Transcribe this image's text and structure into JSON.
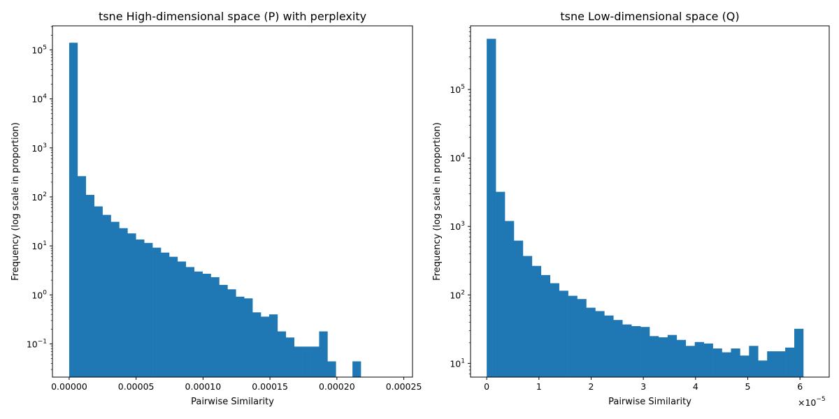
{
  "colors": {
    "bar": "#1f77b4",
    "axis": "#000000",
    "background": "#ffffff"
  },
  "chart_data": [
    {
      "type": "bar",
      "title": "tsne High-dimensional space (P) with perplexity",
      "xlabel": "Pairwise Similarity",
      "ylabel": "Frequency (log scale in proportion)",
      "y_scale": "log",
      "xlim": [
        -1.25e-05,
        0.0002565
      ],
      "ylim": [
        0.021,
        310000
      ],
      "x_ticks": [
        0,
        5e-05,
        0.0001,
        0.00015,
        0.0002,
        0.00025
      ],
      "x_tick_labels": [
        "0.00000",
        "0.00005",
        "0.00010",
        "0.00015",
        "0.00020",
        "0.00025"
      ],
      "y_ticks": [
        0.1,
        1,
        10,
        100,
        1000,
        10000,
        100000
      ],
      "y_tick_labels": [
        {
          "base": "10",
          "exp": "−1"
        },
        {
          "base": "10",
          "exp": "0"
        },
        {
          "base": "10",
          "exp": "1"
        },
        {
          "base": "10",
          "exp": "2"
        },
        {
          "base": "10",
          "exp": "3"
        },
        {
          "base": "10",
          "exp": "4"
        },
        {
          "base": "10",
          "exp": "5"
        }
      ],
      "bin_start": 0,
      "bin_width": 6.225e-06,
      "values": [
        140000,
        265,
        110,
        64,
        43,
        31,
        23,
        18,
        13.5,
        11.5,
        9.2,
        7.3,
        6.0,
        4.8,
        3.7,
        3.0,
        2.7,
        2.3,
        1.6,
        1.3,
        0.92,
        0.85,
        0.44,
        0.36,
        0.4,
        0.18,
        0.135,
        0.088,
        0.088,
        0.088,
        0.18,
        0.044,
        0,
        0,
        0.044,
        0,
        0,
        0,
        0,
        0
      ]
    },
    {
      "type": "bar",
      "title": "tsne Low-dimensional space (Q)",
      "xlabel": "Pairwise Similarity",
      "ylabel": "Frequency (log scale in proportion)",
      "y_scale": "log",
      "x_offset_label": {
        "base": "×10",
        "exp": "−5"
      },
      "xlim": [
        -0.31,
        6.56
      ],
      "ylim": [
        6.3,
        850000
      ],
      "x_ticks": [
        0,
        1,
        2,
        3,
        4,
        5,
        6
      ],
      "x_tick_labels": [
        "0",
        "1",
        "2",
        "3",
        "4",
        "5",
        "6"
      ],
      "y_ticks": [
        10,
        100,
        1000,
        10000,
        100000
      ],
      "y_tick_labels": [
        {
          "base": "10",
          "exp": "1"
        },
        {
          "base": "10",
          "exp": "2"
        },
        {
          "base": "10",
          "exp": "3"
        },
        {
          "base": "10",
          "exp": "4"
        },
        {
          "base": "10",
          "exp": "5"
        }
      ],
      "bin_start": 0,
      "bin_width": 0.17325,
      "values": [
        550000,
        3200,
        1200,
        620,
        370,
        265,
        195,
        148,
        115,
        97,
        87,
        65,
        58,
        50,
        43,
        37,
        35,
        34,
        25,
        24,
        26,
        22,
        18,
        20.5,
        19.5,
        16.5,
        14.5,
        16.5,
        13,
        18,
        11,
        15,
        15,
        17,
        32
      ]
    }
  ]
}
